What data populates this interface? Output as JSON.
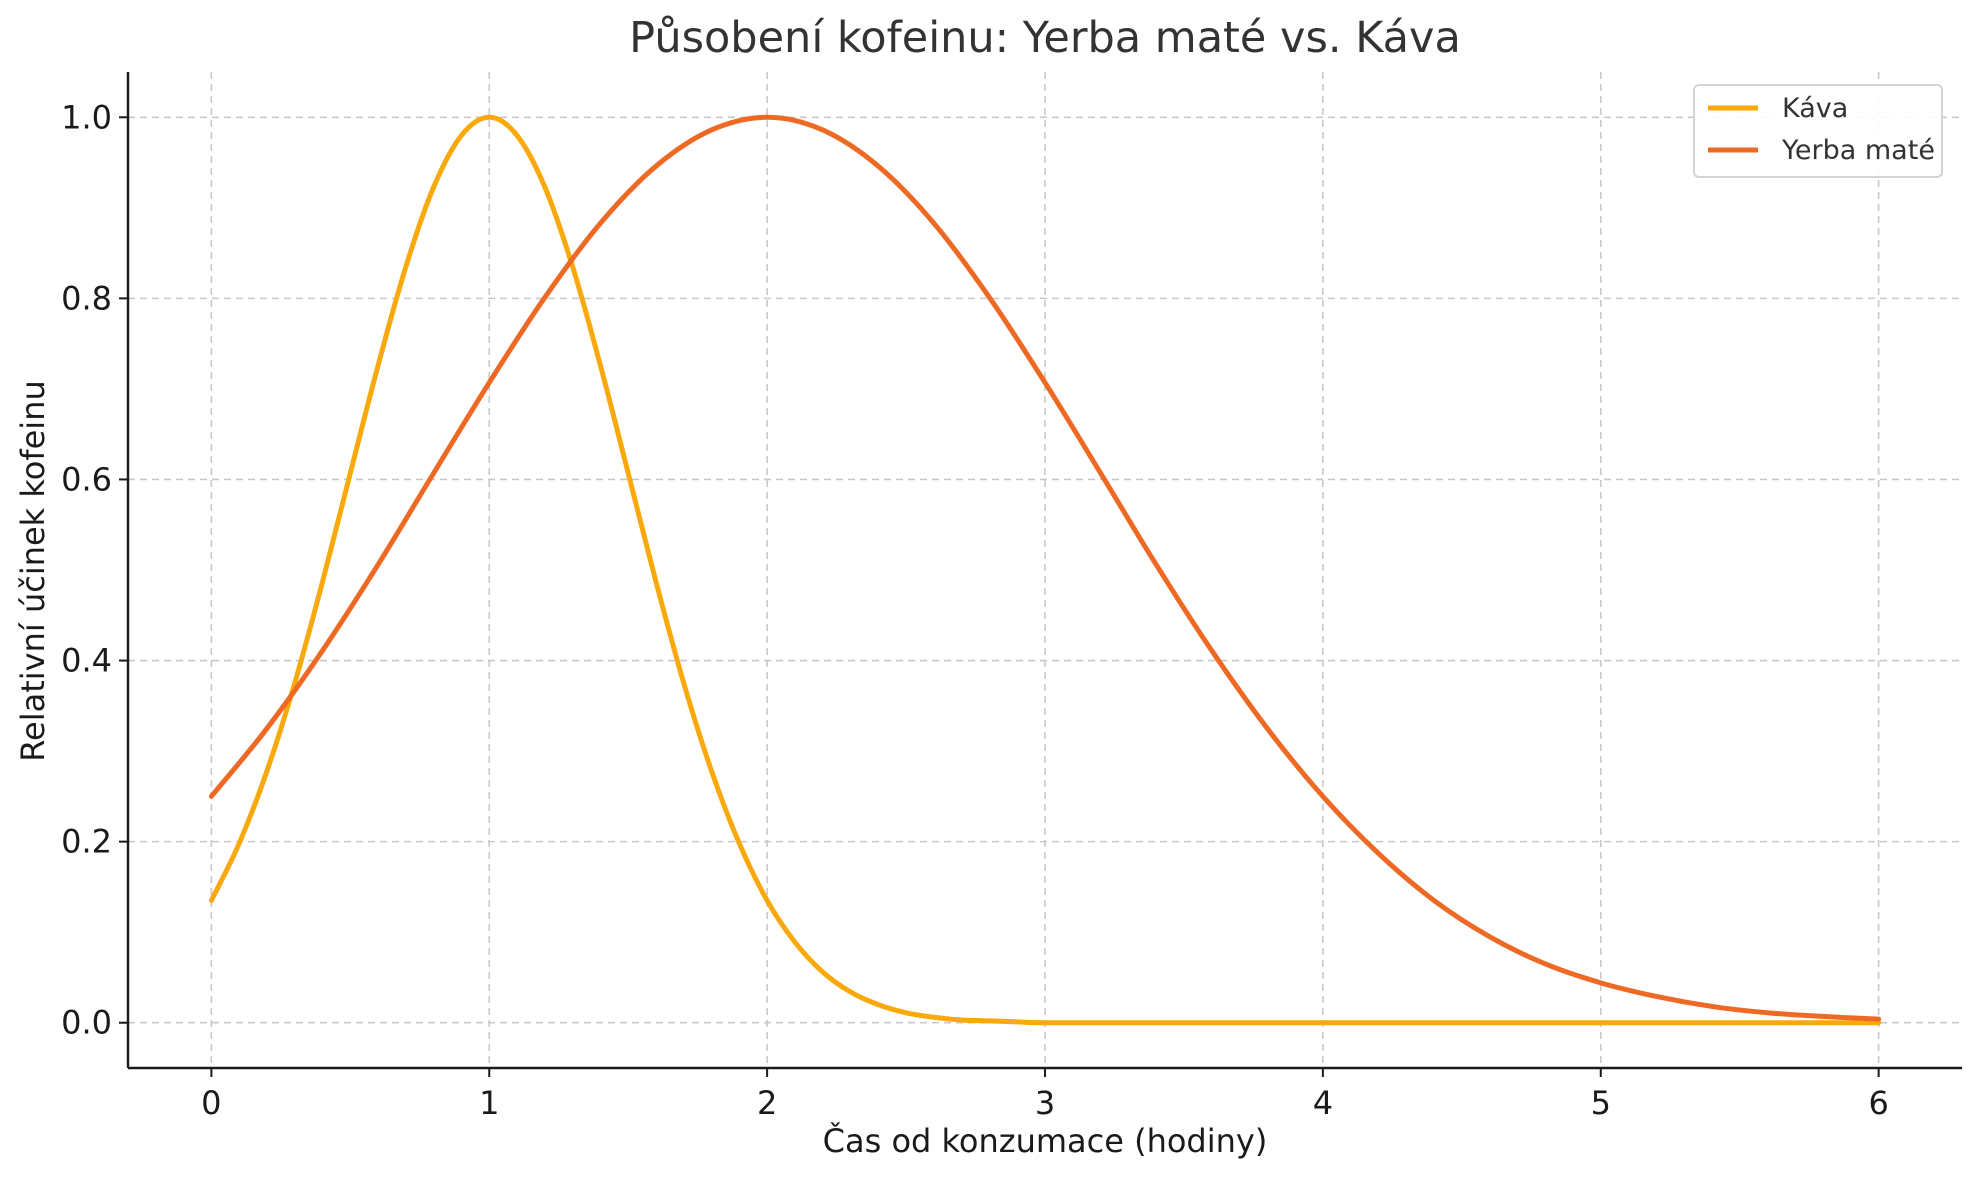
{
  "chart_data": {
    "type": "line",
    "title": "Působení kofeinu: Yerba maté vs. Káva",
    "xlabel": "Čas od konzumace (hodiny)",
    "ylabel": "Relativní účinek kofeinu",
    "xlim": [
      -0.3,
      6.3
    ],
    "ylim": [
      -0.05,
      1.05
    ],
    "x_ticks": [
      0,
      1,
      2,
      3,
      4,
      5,
      6
    ],
    "x_tick_labels": [
      "0",
      "1",
      "2",
      "3",
      "4",
      "5",
      "6"
    ],
    "y_ticks": [
      0.0,
      0.2,
      0.4,
      0.6,
      0.8,
      1.0
    ],
    "y_tick_labels": [
      "0.0",
      "0.2",
      "0.4",
      "0.6",
      "0.8",
      "1.0"
    ],
    "grid": true,
    "legend_position": "top-right",
    "series": [
      {
        "name": "Káva",
        "color": "#F9A90B",
        "x": [
          0,
          0.1,
          0.2,
          0.3,
          0.4,
          0.5,
          0.6,
          0.7,
          0.8,
          0.9,
          1.0,
          1.1,
          1.2,
          1.3,
          1.4,
          1.5,
          1.6,
          1.7,
          1.8,
          1.9,
          2.0,
          2.1,
          2.2,
          2.3,
          2.4,
          2.5,
          2.6,
          2.7,
          2.8,
          2.9,
          3.0,
          3.5,
          4.0,
          4.5,
          5.0,
          5.5,
          6.0
        ],
        "y": [
          0.135,
          0.198,
          0.278,
          0.375,
          0.487,
          0.607,
          0.726,
          0.835,
          0.923,
          0.98,
          1.0,
          0.98,
          0.923,
          0.835,
          0.726,
          0.607,
          0.487,
          0.375,
          0.278,
          0.198,
          0.135,
          0.089,
          0.056,
          0.034,
          0.02,
          0.011,
          0.006,
          0.003,
          0.002,
          0.001,
          0.0,
          0.0,
          0.0,
          0.0,
          0.0,
          0.0,
          0.0
        ]
      },
      {
        "name": "Yerba maté",
        "color": "#EE6A24",
        "x": [
          0,
          0.2,
          0.4,
          0.6,
          0.8,
          1.0,
          1.2,
          1.4,
          1.6,
          1.8,
          2.0,
          2.2,
          2.4,
          2.6,
          2.8,
          3.0,
          3.2,
          3.4,
          3.6,
          3.8,
          4.0,
          4.2,
          4.4,
          4.6,
          4.8,
          5.0,
          5.2,
          5.4,
          5.6,
          5.8,
          6.0
        ],
        "y": [
          0.25,
          0.325,
          0.411,
          0.506,
          0.607,
          0.707,
          0.801,
          0.883,
          0.946,
          0.986,
          1.0,
          0.986,
          0.946,
          0.883,
          0.801,
          0.707,
          0.607,
          0.506,
          0.411,
          0.325,
          0.25,
          0.187,
          0.135,
          0.095,
          0.065,
          0.044,
          0.029,
          0.018,
          0.011,
          0.007,
          0.004
        ]
      }
    ]
  }
}
